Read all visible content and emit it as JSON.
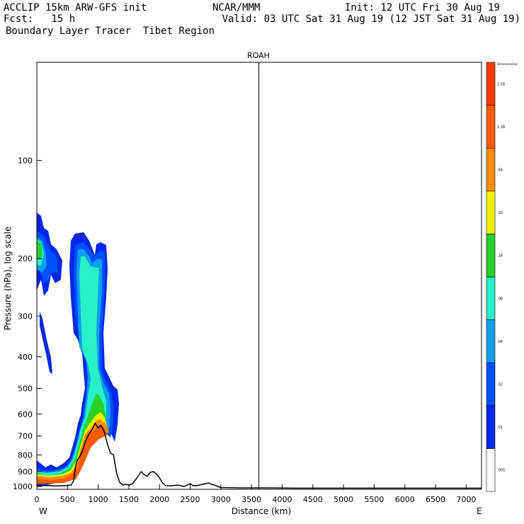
{
  "header": {
    "line1_left": "ACCLIP 15km ARW-GFS init",
    "line1_center": "NCAR/MMM",
    "line1_right": "Init: 12 UTC Fri 30 Aug 19",
    "line2_left": "Fcst:   15 h",
    "line2_right": "Valid: 03 UTC Sat 31 Aug 19 (12 JST Sat 31 Aug 19)",
    "line3_left": "Boundary Layer Tracer  Tibet Region"
  },
  "chart_data": {
    "type": "heatmap",
    "title": "ROAH",
    "xlabel": "Distance (km)",
    "ylabel": "Pressure (hPa), log scale",
    "x_ticks": [
      0,
      500,
      1000,
      1500,
      2000,
      2500,
      3000,
      3500,
      4000,
      4500,
      5000,
      5500,
      6000,
      6500,
      7000
    ],
    "y_ticks": [
      100,
      200,
      300,
      400,
      500,
      600,
      700,
      800,
      900,
      1000
    ],
    "xlim": [
      0,
      7250
    ],
    "ylim_hpa": [
      1020,
      50
    ],
    "y_scale": "log",
    "x_end_labels": {
      "left": "W",
      "right": "E"
    },
    "marker_line_km": 3620,
    "colorbar": {
      "title": "Dimensionless",
      "levels": [
        ".005",
        ".01",
        ".02",
        ".04",
        ".08",
        ".16",
        ".32",
        ".64",
        "1.28",
        "2.56"
      ],
      "colors": [
        "#ffffff",
        "#0028e8",
        "#0050ff",
        "#0c9ff0",
        "#28f0c8",
        "#28d228",
        "#f0f000",
        "#ff8c00",
        "#ff5a00",
        "#ff3c00"
      ]
    },
    "terrain_profile": {
      "x_km": [
        0,
        100,
        200,
        300,
        400,
        500,
        560,
        600,
        630,
        660,
        700,
        750,
        800,
        850,
        900,
        950,
        1000,
        1050,
        1100,
        1150,
        1200,
        1250,
        1300,
        1350,
        1400,
        1450,
        1500,
        1550,
        1600,
        1650,
        1700,
        1750,
        1800,
        1850,
        1900,
        1950,
        2000,
        2050,
        2100,
        2200,
        2300,
        2400,
        2500,
        2550,
        2600,
        2700,
        2800,
        2850,
        2900,
        2950,
        3000,
        3100,
        3300,
        3500,
        3800,
        4200,
        5000,
        6000,
        7000,
        7250
      ],
      "p_hpa": [
        995,
        994,
        993,
        996,
        995,
        994,
        990,
        960,
        870,
        830,
        810,
        770,
        720,
        690,
        670,
        640,
        660,
        650,
        680,
        740,
        790,
        800,
        910,
        970,
        990,
        985,
        990,
        985,
        960,
        930,
        900,
        920,
        930,
        905,
        900,
        915,
        940,
        975,
        995,
        995,
        990,
        1000,
        980,
        995,
        995,
        985,
        975,
        985,
        990,
        1000,
        1008,
        1008,
        1010,
        1010,
        1010,
        1012,
        1012,
        1012,
        1012,
        1012
      ]
    }
  }
}
